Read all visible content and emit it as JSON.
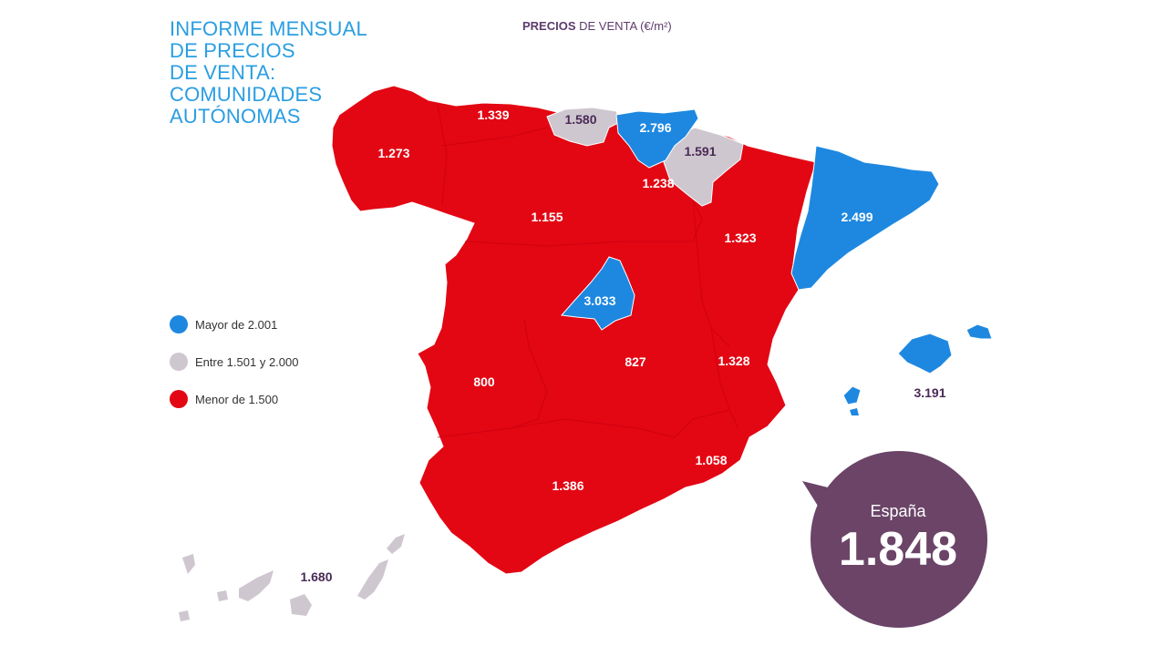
{
  "title_lines": [
    "INFORME MENSUAL",
    "DE PRECIOS",
    "DE VENTA:",
    "COMUNIDADES",
    "AUTÓNOMAS"
  ],
  "subtitle": {
    "bold": "PRECIOS",
    "rest": " DE VENTA (€/m²)"
  },
  "legend": [
    {
      "label": "Mayor de 2.001",
      "color": "#1e88e0"
    },
    {
      "label": "Entre 1.501 y 2.000",
      "color": "#cfc7cf"
    },
    {
      "label": "Menor de 1.500",
      "color": "#e30613"
    }
  ],
  "colors": {
    "high": "#1e88e0",
    "mid": "#cfc7cf",
    "low": "#e30613",
    "badge": "#6b4468"
  },
  "regions": {
    "galicia": "1.273",
    "asturias": "1.339",
    "cantabria": "1.580",
    "pais_vasco": "2.796",
    "navarra": "1.591",
    "la_rioja": "1.238",
    "castilla_leon": "1.155",
    "aragon": "1.323",
    "cataluna": "2.499",
    "madrid": "3.033",
    "castilla_la_mancha": "827",
    "extremadura": "800",
    "comunidad_valenciana": "1.328",
    "murcia": "1.058",
    "andalucia": "1.386",
    "baleares": "3.191",
    "canarias": "1.680"
  },
  "national": {
    "label": "España",
    "value": "1.848"
  }
}
